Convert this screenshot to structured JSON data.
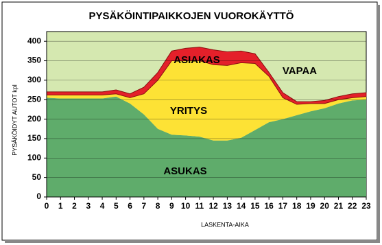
{
  "chart_data": {
    "type": "stacked_area",
    "title": "PYSÄKÖINTIPAIKKOJEN VUOROKÄYTTÖ",
    "x_label": "LASKENTA-AIKA",
    "y_label": "PYSÄKÖIDYT AUTOT kpl",
    "annotation": "VAPAA",
    "background": "#d5e8b0",
    "x": [
      0,
      1,
      2,
      3,
      4,
      5,
      6,
      7,
      8,
      9,
      10,
      11,
      12,
      13,
      14,
      15,
      16,
      17,
      18,
      19,
      20,
      21,
      22,
      23
    ],
    "xlim": [
      0,
      23
    ],
    "xticks": [
      0,
      1,
      2,
      3,
      4,
      5,
      6,
      7,
      8,
      9,
      10,
      11,
      12,
      13,
      14,
      15,
      16,
      17,
      18,
      19,
      20,
      21,
      22,
      23
    ],
    "ylim": [
      0,
      425
    ],
    "yticks": [
      0,
      50,
      100,
      150,
      200,
      250,
      300,
      350,
      400
    ],
    "grid": true,
    "series": [
      {
        "name": "ASUKAS",
        "color": "#5fac6b",
        "values": [
          255,
          253,
          253,
          253,
          253,
          258,
          240,
          212,
          175,
          160,
          158,
          155,
          145,
          145,
          152,
          172,
          192,
          200,
          210,
          220,
          228,
          240,
          248,
          250
        ]
      },
      {
        "name": "YRITYS",
        "color": "#fde235",
        "values": [
          7,
          9,
          9,
          9,
          9,
          7,
          15,
          53,
          125,
          190,
          192,
          195,
          195,
          193,
          193,
          171,
          118,
          55,
          28,
          20,
          12,
          10,
          7,
          8
        ]
      },
      {
        "name": "ASIAKAS",
        "color": "#e4202a",
        "values": [
          8,
          8,
          8,
          8,
          8,
          10,
          10,
          17,
          20,
          25,
          32,
          35,
          38,
          35,
          30,
          25,
          10,
          13,
          7,
          5,
          8,
          8,
          10,
          10
        ]
      }
    ]
  }
}
